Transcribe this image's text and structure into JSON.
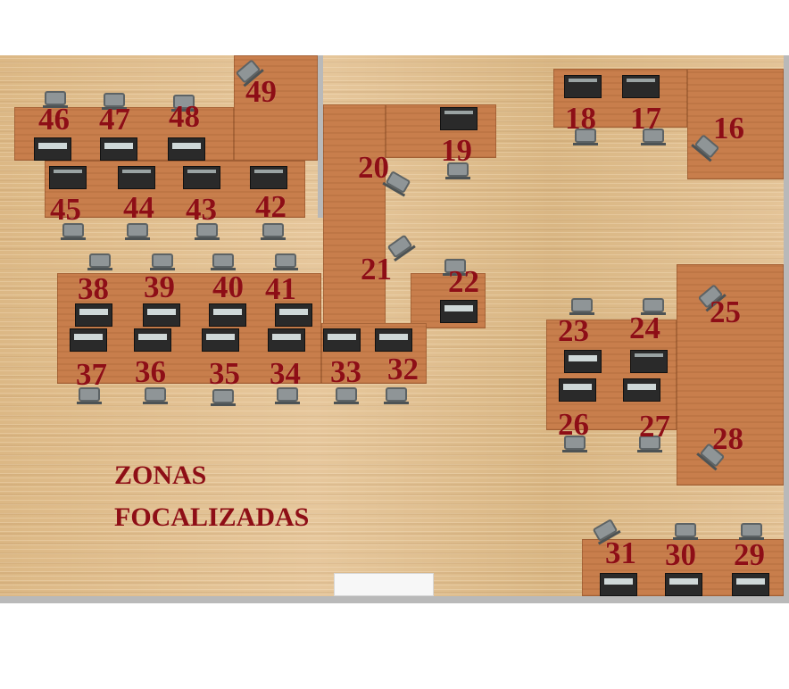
{
  "zone_label": {
    "line1": "ZONAS",
    "line2": "FOCALIZADAS"
  },
  "desks": {
    "d16": "16",
    "d17": "17",
    "d18": "18",
    "d19": "19",
    "d20": "20",
    "d21": "21",
    "d22": "22",
    "d23": "23",
    "d24": "24",
    "d25": "25",
    "d26": "26",
    "d27": "27",
    "d28": "28",
    "d29": "29",
    "d30": "30",
    "d31": "31",
    "d32": "32",
    "d33": "33",
    "d34": "34",
    "d35": "35",
    "d36": "36",
    "d37": "37",
    "d38": "38",
    "d39": "39",
    "d40": "40",
    "d41": "41",
    "d42": "42",
    "d43": "43",
    "d44": "44",
    "d45": "45",
    "d46": "46",
    "d47": "47",
    "d48": "48",
    "d49": "49"
  },
  "colors": {
    "floor": "#e2c295",
    "desk": "#c87e4c",
    "label": "#8e0e16",
    "wall": "#b9b9b9"
  }
}
